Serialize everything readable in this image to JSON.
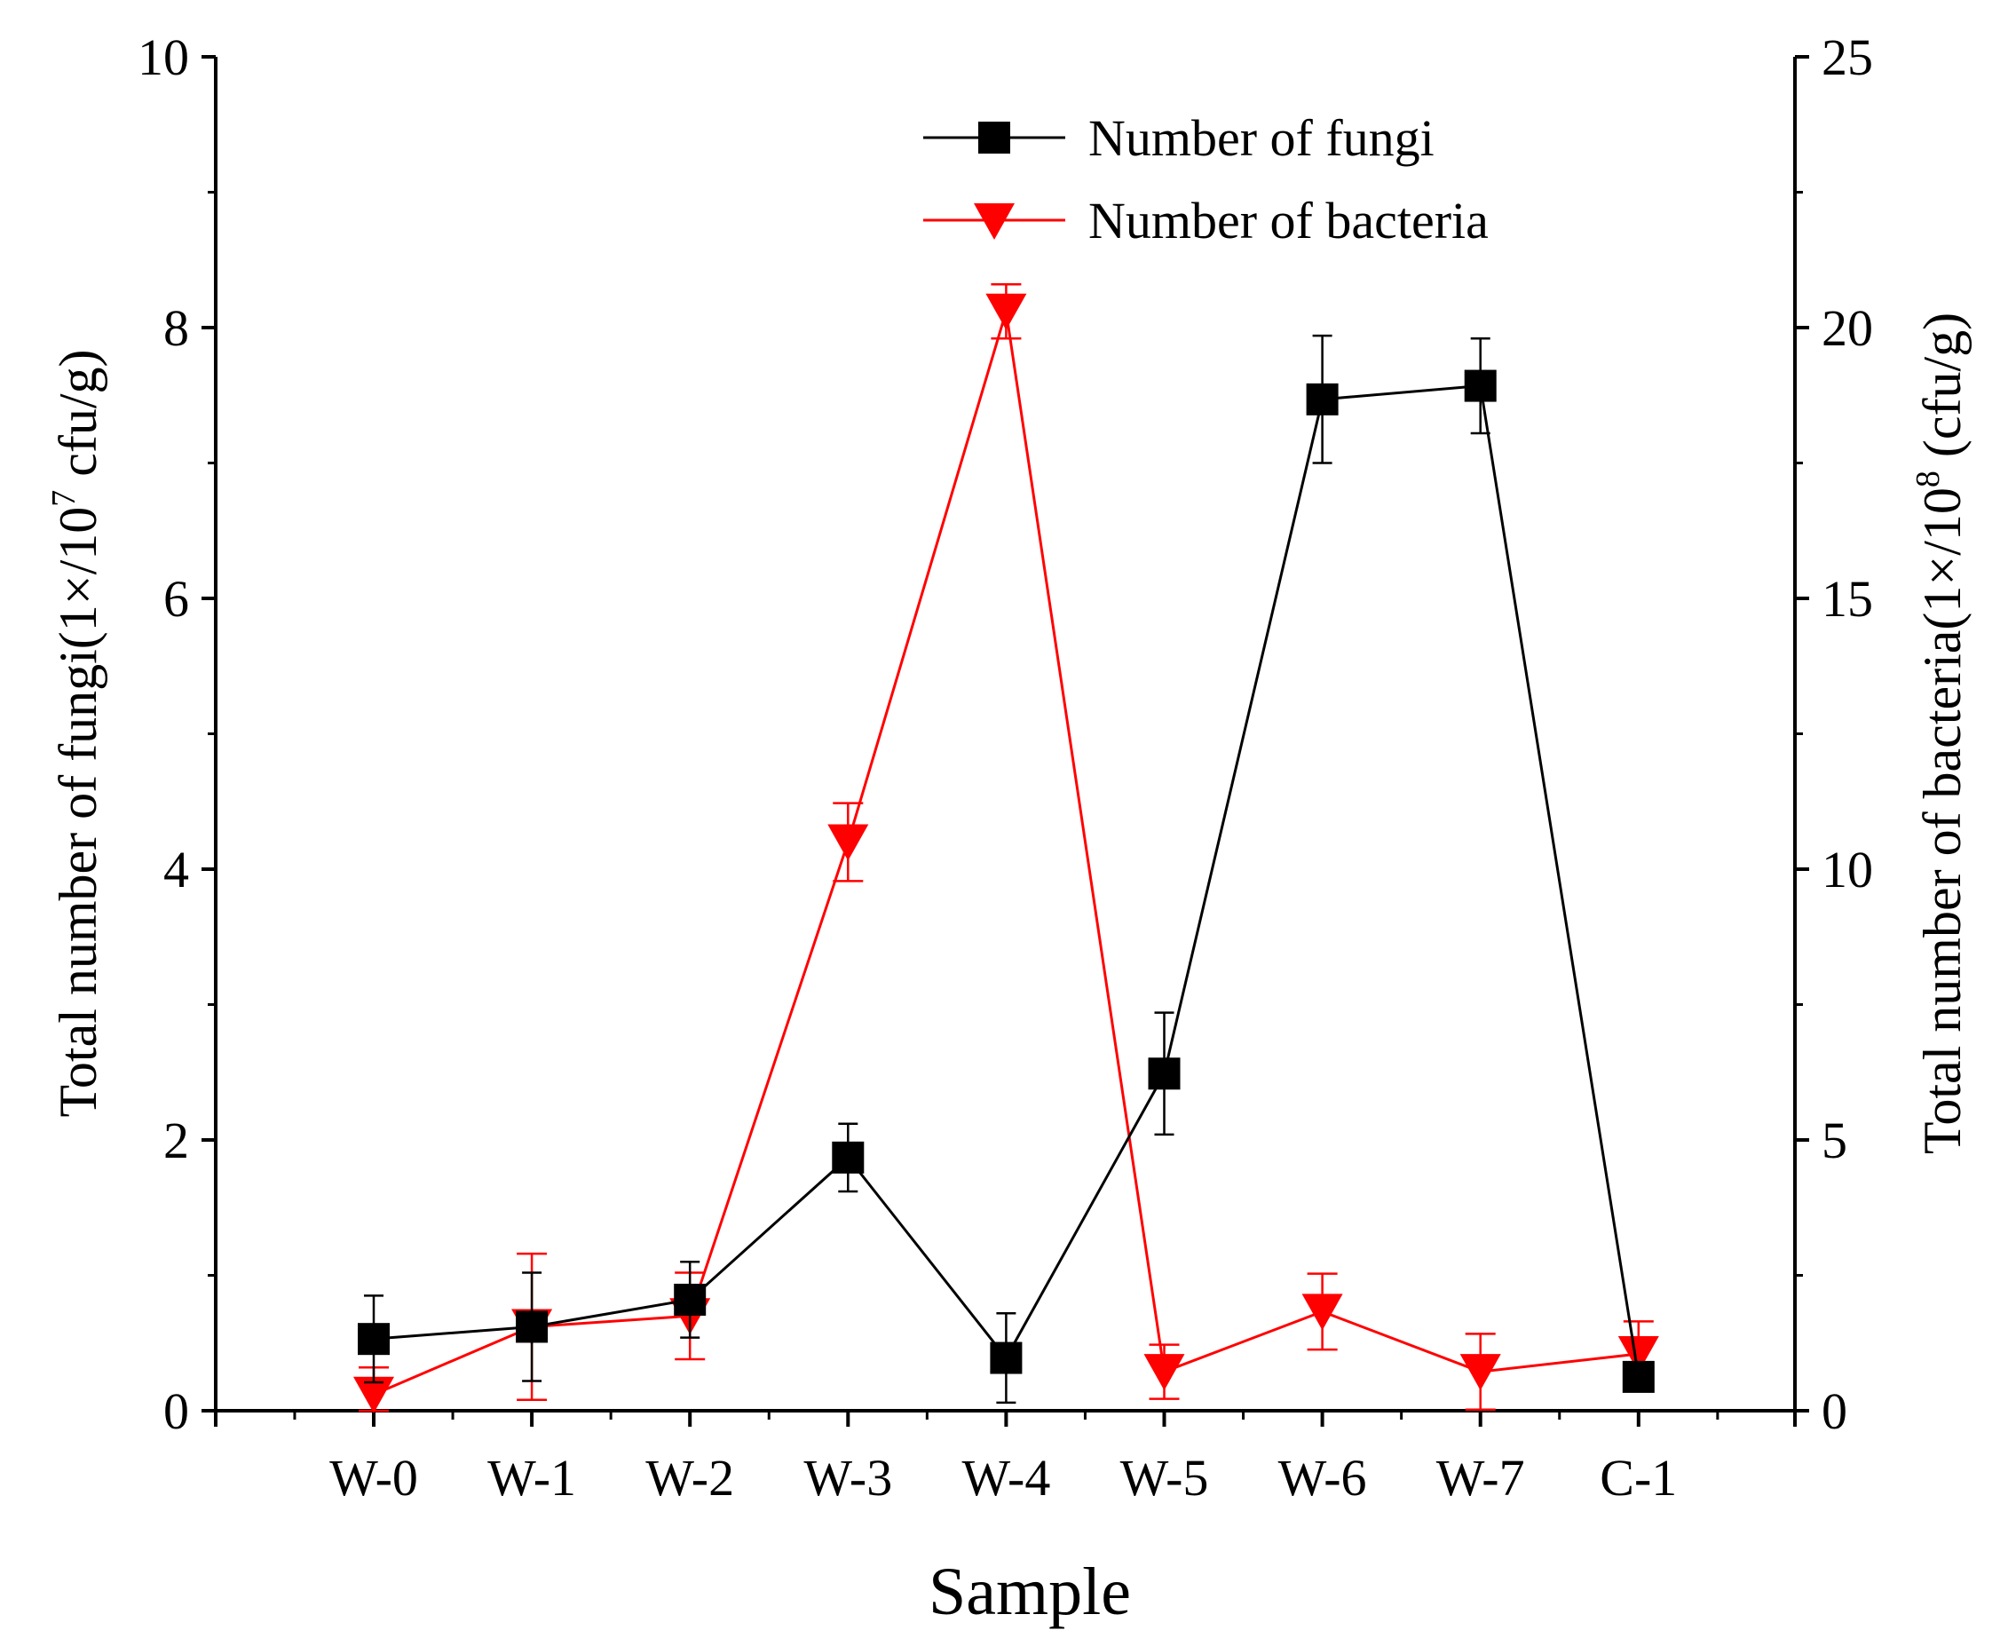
{
  "chart_data": {
    "type": "line",
    "xlabel": "Sample",
    "ylabel_left": {
      "prefix": "Total number of fungi(1×/10",
      "exp": "7",
      "suffix": " cfu/g)"
    },
    "ylabel_right": {
      "prefix": "Total number of bacteria(1×/10",
      "exp": "8",
      "suffix": " (cfu/g)"
    },
    "categories": [
      "W-0",
      "W-1",
      "W-2",
      "W-3",
      "W-4",
      "W-5",
      "W-6",
      "W-7",
      "C-1"
    ],
    "ylim_left": [
      0,
      10
    ],
    "yticks_left": [
      "0",
      "2",
      "4",
      "6",
      "8",
      "10"
    ],
    "ylim_right": [
      0,
      25
    ],
    "yticks_right": [
      "0",
      "5",
      "10",
      "15",
      "20",
      "25"
    ],
    "legend_position": "top-right",
    "grid": false,
    "series": [
      {
        "name": "Number of fungi",
        "axis": "left",
        "marker": "square",
        "color": "#000000",
        "values": [
          0.53,
          0.62,
          0.82,
          1.87,
          0.39,
          2.49,
          7.47,
          7.57,
          0.25
        ],
        "errors": [
          0.32,
          0.4,
          0.28,
          0.25,
          0.33,
          0.45,
          0.47,
          0.35,
          0.08
        ]
      },
      {
        "name": "Number of bacteria",
        "axis": "right",
        "marker": "triangle-down",
        "color": "#ff0000",
        "values": [
          0.3,
          1.55,
          1.75,
          10.5,
          20.3,
          0.72,
          1.83,
          0.72,
          1.05
        ],
        "errors": [
          0.5,
          1.35,
          0.8,
          0.72,
          0.5,
          0.5,
          0.7,
          0.7,
          0.6
        ]
      }
    ]
  }
}
